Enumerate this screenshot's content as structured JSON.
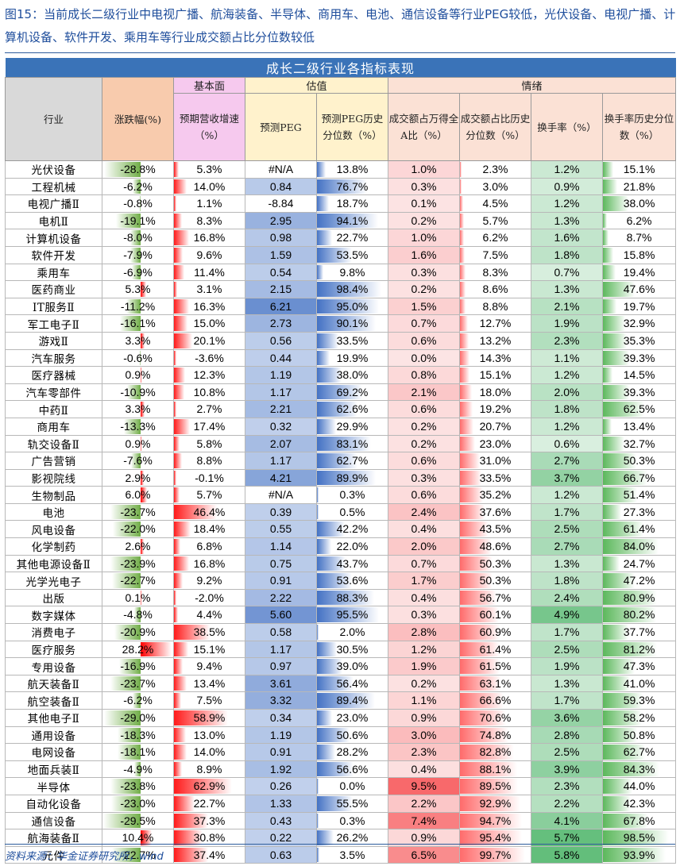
{
  "title": "图15：当前成长二级行业中电视广播、航海装备、半导体、商用车、电池、通信设备等行业PEG较低，光伏设备、电视广播、计算机设备、软件开发、乘用车等行业成交额占比分位数较低",
  "table_title": "成长二级行业各指标表现",
  "groups": {
    "fundamental": "基本面",
    "valuation": "估值",
    "sentiment": "情绪"
  },
  "headers": {
    "industry": "行业",
    "change": "涨跌幅(%)",
    "revenue": "预期营收增速（%）",
    "peg": "预测PEG",
    "peg_pct": "预测PEG历史分位数（%）",
    "turnover_share": "成交额占万得全A比（%）",
    "turnover_pct": "成交额占比历史分位数（%）",
    "turnover_rate": "换手率（%）",
    "turnover_rate_pct": "换手率历史分位数（%）"
  },
  "rows": [
    {
      "industry": "光伏设备",
      "change": "-28.8%",
      "revenue": "5.3%",
      "peg": "#N/A",
      "peg_pct": "13.8%",
      "share": "1.0%",
      "share_pct": "2.3%",
      "rate": "1.2%",
      "rate_pct": "15.1%"
    },
    {
      "industry": "工程机械",
      "change": "-6.2%",
      "revenue": "14.0%",
      "peg": "0.84",
      "peg_pct": "76.7%",
      "share": "0.3%",
      "share_pct": "3.0%",
      "rate": "0.9%",
      "rate_pct": "21.8%"
    },
    {
      "industry": "电视广播Ⅱ",
      "change": "-0.8%",
      "revenue": "1.1%",
      "peg": "-8.84",
      "peg_pct": "18.7%",
      "share": "0.1%",
      "share_pct": "4.5%",
      "rate": "1.2%",
      "rate_pct": "38.0%"
    },
    {
      "industry": "电机Ⅱ",
      "change": "-19.1%",
      "revenue": "8.3%",
      "peg": "2.95",
      "peg_pct": "94.1%",
      "share": "0.2%",
      "share_pct": "5.7%",
      "rate": "1.3%",
      "rate_pct": "6.2%"
    },
    {
      "industry": "计算机设备",
      "change": "-8.0%",
      "revenue": "16.8%",
      "peg": "0.98",
      "peg_pct": "22.7%",
      "share": "1.0%",
      "share_pct": "6.2%",
      "rate": "1.6%",
      "rate_pct": "8.7%"
    },
    {
      "industry": "软件开发",
      "change": "-7.9%",
      "revenue": "9.6%",
      "peg": "1.59",
      "peg_pct": "53.5%",
      "share": "1.6%",
      "share_pct": "7.5%",
      "rate": "1.8%",
      "rate_pct": "15.8%"
    },
    {
      "industry": "乘用车",
      "change": "-6.9%",
      "revenue": "11.4%",
      "peg": "0.54",
      "peg_pct": "9.8%",
      "share": "0.3%",
      "share_pct": "8.3%",
      "rate": "0.7%",
      "rate_pct": "19.4%"
    },
    {
      "industry": "医药商业",
      "change": "5.3%",
      "revenue": "3.1%",
      "peg": "2.15",
      "peg_pct": "98.4%",
      "share": "0.2%",
      "share_pct": "8.6%",
      "rate": "1.3%",
      "rate_pct": "47.6%"
    },
    {
      "industry": "IT服务Ⅱ",
      "change": "-11.2%",
      "revenue": "16.3%",
      "peg": "6.21",
      "peg_pct": "95.0%",
      "share": "1.5%",
      "share_pct": "8.8%",
      "rate": "2.1%",
      "rate_pct": "19.7%"
    },
    {
      "industry": "军工电子Ⅱ",
      "change": "-16.1%",
      "revenue": "15.0%",
      "peg": "2.73",
      "peg_pct": "90.1%",
      "share": "0.7%",
      "share_pct": "12.7%",
      "rate": "1.9%",
      "rate_pct": "32.9%"
    },
    {
      "industry": "游戏Ⅱ",
      "change": "3.3%",
      "revenue": "20.1%",
      "peg": "0.56",
      "peg_pct": "33.5%",
      "share": "0.6%",
      "share_pct": "13.2%",
      "rate": "2.3%",
      "rate_pct": "35.3%"
    },
    {
      "industry": "汽车服务",
      "change": "-0.6%",
      "revenue": "-3.6%",
      "peg": "0.44",
      "peg_pct": "19.9%",
      "share": "0.0%",
      "share_pct": "14.3%",
      "rate": "1.1%",
      "rate_pct": "39.3%"
    },
    {
      "industry": "医疗器械",
      "change": "0.9%",
      "revenue": "12.3%",
      "peg": "1.19",
      "peg_pct": "38.0%",
      "share": "0.8%",
      "share_pct": "15.1%",
      "rate": "1.2%",
      "rate_pct": "14.5%"
    },
    {
      "industry": "汽车零部件",
      "change": "-10.9%",
      "revenue": "10.8%",
      "peg": "1.17",
      "peg_pct": "69.2%",
      "share": "2.1%",
      "share_pct": "18.0%",
      "rate": "2.0%",
      "rate_pct": "39.3%"
    },
    {
      "industry": "中药Ⅱ",
      "change": "3.3%",
      "revenue": "2.7%",
      "peg": "2.21",
      "peg_pct": "62.6%",
      "share": "0.6%",
      "share_pct": "19.2%",
      "rate": "1.8%",
      "rate_pct": "62.5%"
    },
    {
      "industry": "商用车",
      "change": "-13.3%",
      "revenue": "17.4%",
      "peg": "0.32",
      "peg_pct": "29.9%",
      "share": "0.2%",
      "share_pct": "20.7%",
      "rate": "1.2%",
      "rate_pct": "13.4%"
    },
    {
      "industry": "轨交设备Ⅱ",
      "change": "0.9%",
      "revenue": "5.8%",
      "peg": "2.07",
      "peg_pct": "83.1%",
      "share": "0.2%",
      "share_pct": "23.0%",
      "rate": "0.6%",
      "rate_pct": "32.7%"
    },
    {
      "industry": "广告营销",
      "change": "-7.6%",
      "revenue": "8.8%",
      "peg": "1.17",
      "peg_pct": "62.7%",
      "share": "0.6%",
      "share_pct": "31.0%",
      "rate": "2.7%",
      "rate_pct": "50.3%"
    },
    {
      "industry": "影视院线",
      "change": "2.9%",
      "revenue": "-0.1%",
      "peg": "4.21",
      "peg_pct": "89.9%",
      "share": "0.3%",
      "share_pct": "33.5%",
      "rate": "3.7%",
      "rate_pct": "66.7%"
    },
    {
      "industry": "生物制品",
      "change": "6.0%",
      "revenue": "5.7%",
      "peg": "#N/A",
      "peg_pct": "0.3%",
      "share": "0.6%",
      "share_pct": "35.2%",
      "rate": "1.2%",
      "rate_pct": "51.4%"
    },
    {
      "industry": "电池",
      "change": "-23.7%",
      "revenue": "46.4%",
      "peg": "0.39",
      "peg_pct": "0.5%",
      "share": "2.4%",
      "share_pct": "37.6%",
      "rate": "1.7%",
      "rate_pct": "27.3%"
    },
    {
      "industry": "风电设备",
      "change": "-22.0%",
      "revenue": "18.4%",
      "peg": "0.55",
      "peg_pct": "42.2%",
      "share": "0.4%",
      "share_pct": "43.5%",
      "rate": "2.5%",
      "rate_pct": "61.4%"
    },
    {
      "industry": "化学制药",
      "change": "2.6%",
      "revenue": "6.8%",
      "peg": "1.14",
      "peg_pct": "22.0%",
      "share": "2.0%",
      "share_pct": "48.6%",
      "rate": "2.7%",
      "rate_pct": "84.0%"
    },
    {
      "industry": "其他电源设备Ⅱ",
      "change": "-23.9%",
      "revenue": "16.8%",
      "peg": "0.75",
      "peg_pct": "43.7%",
      "share": "0.7%",
      "share_pct": "50.3%",
      "rate": "1.3%",
      "rate_pct": "24.7%"
    },
    {
      "industry": "光学光电子",
      "change": "-22.7%",
      "revenue": "9.2%",
      "peg": "0.91",
      "peg_pct": "53.6%",
      "share": "1.7%",
      "share_pct": "50.3%",
      "rate": "1.8%",
      "rate_pct": "47.2%"
    },
    {
      "industry": "出版",
      "change": "0.1%",
      "revenue": "-2.0%",
      "peg": "2.22",
      "peg_pct": "88.3%",
      "share": "0.4%",
      "share_pct": "56.7%",
      "rate": "2.4%",
      "rate_pct": "80.9%"
    },
    {
      "industry": "数字媒体",
      "change": "-4.8%",
      "revenue": "4.4%",
      "peg": "5.60",
      "peg_pct": "95.5%",
      "share": "0.3%",
      "share_pct": "60.1%",
      "rate": "4.9%",
      "rate_pct": "80.2%"
    },
    {
      "industry": "消费电子",
      "change": "-20.9%",
      "revenue": "38.5%",
      "peg": "0.58",
      "peg_pct": "2.0%",
      "share": "2.8%",
      "share_pct": "60.9%",
      "rate": "1.7%",
      "rate_pct": "37.7%"
    },
    {
      "industry": "医疗服务",
      "change": "28.2%",
      "revenue": "15.1%",
      "peg": "1.17",
      "peg_pct": "30.5%",
      "share": "1.2%",
      "share_pct": "61.4%",
      "rate": "2.5%",
      "rate_pct": "81.2%"
    },
    {
      "industry": "专用设备",
      "change": "-16.9%",
      "revenue": "9.4%",
      "peg": "0.97",
      "peg_pct": "39.0%",
      "share": "1.9%",
      "share_pct": "61.5%",
      "rate": "1.9%",
      "rate_pct": "47.3%"
    },
    {
      "industry": "航天装备Ⅱ",
      "change": "-23.7%",
      "revenue": "13.4%",
      "peg": "3.61",
      "peg_pct": "56.4%",
      "share": "0.2%",
      "share_pct": "63.1%",
      "rate": "1.3%",
      "rate_pct": "41.0%"
    },
    {
      "industry": "航空装备Ⅱ",
      "change": "-6.2%",
      "revenue": "7.5%",
      "peg": "3.32",
      "peg_pct": "89.4%",
      "share": "1.1%",
      "share_pct": "66.6%",
      "rate": "1.7%",
      "rate_pct": "59.3%"
    },
    {
      "industry": "其他电子Ⅱ",
      "change": "-29.0%",
      "revenue": "58.9%",
      "peg": "0.34",
      "peg_pct": "23.0%",
      "share": "0.9%",
      "share_pct": "70.6%",
      "rate": "3.6%",
      "rate_pct": "58.2%"
    },
    {
      "industry": "通用设备",
      "change": "-18.3%",
      "revenue": "13.0%",
      "peg": "1.19",
      "peg_pct": "50.6%",
      "share": "3.0%",
      "share_pct": "74.8%",
      "rate": "2.8%",
      "rate_pct": "50.8%"
    },
    {
      "industry": "电网设备",
      "change": "-18.1%",
      "revenue": "14.0%",
      "peg": "0.91",
      "peg_pct": "28.2%",
      "share": "2.3%",
      "share_pct": "82.8%",
      "rate": "2.5%",
      "rate_pct": "62.7%"
    },
    {
      "industry": "地面兵装Ⅱ",
      "change": "-4.9%",
      "revenue": "8.9%",
      "peg": "1.92",
      "peg_pct": "56.6%",
      "share": "0.4%",
      "share_pct": "88.1%",
      "rate": "3.9%",
      "rate_pct": "84.3%"
    },
    {
      "industry": "半导体",
      "change": "-23.8%",
      "revenue": "62.9%",
      "peg": "0.26",
      "peg_pct": "0.0%",
      "share": "9.5%",
      "share_pct": "89.5%",
      "rate": "2.3%",
      "rate_pct": "44.0%"
    },
    {
      "industry": "自动化设备",
      "change": "-23.0%",
      "revenue": "22.7%",
      "peg": "1.33",
      "peg_pct": "55.5%",
      "share": "2.2%",
      "share_pct": "92.9%",
      "rate": "2.2%",
      "rate_pct": "42.3%"
    },
    {
      "industry": "通信设备",
      "change": "-29.5%",
      "revenue": "37.3%",
      "peg": "0.43",
      "peg_pct": "0.3%",
      "share": "7.4%",
      "share_pct": "94.7%",
      "rate": "4.1%",
      "rate_pct": "67.8%"
    },
    {
      "industry": "航海装备Ⅱ",
      "change": "10.4%",
      "revenue": "30.8%",
      "peg": "0.22",
      "peg_pct": "26.2%",
      "share": "0.9%",
      "share_pct": "95.4%",
      "rate": "5.7%",
      "rate_pct": "98.5%"
    },
    {
      "industry": "元件",
      "change": "-22.7%",
      "revenue": "37.4%",
      "peg": "0.63",
      "peg_pct": "3.5%",
      "share": "6.5%",
      "share_pct": "99.7%",
      "rate": "5.8%",
      "rate_pct": "93.9%"
    }
  ],
  "colors": {
    "change_neg": "#70ad47",
    "change_pos": "#ff0000",
    "revenue_bar": "#ff1a1a",
    "peg_fill": "#8ea9db",
    "peg_bar": "#4472c4",
    "share_fill": "#f8696b",
    "share_pct_bar": "#ff6b6b",
    "rate_fill": "#63be7b",
    "rate_pct_bar": "#5cb85c",
    "header_main": "#3a73b8"
  },
  "source": "资料来源：华金证券研究所，wind"
}
